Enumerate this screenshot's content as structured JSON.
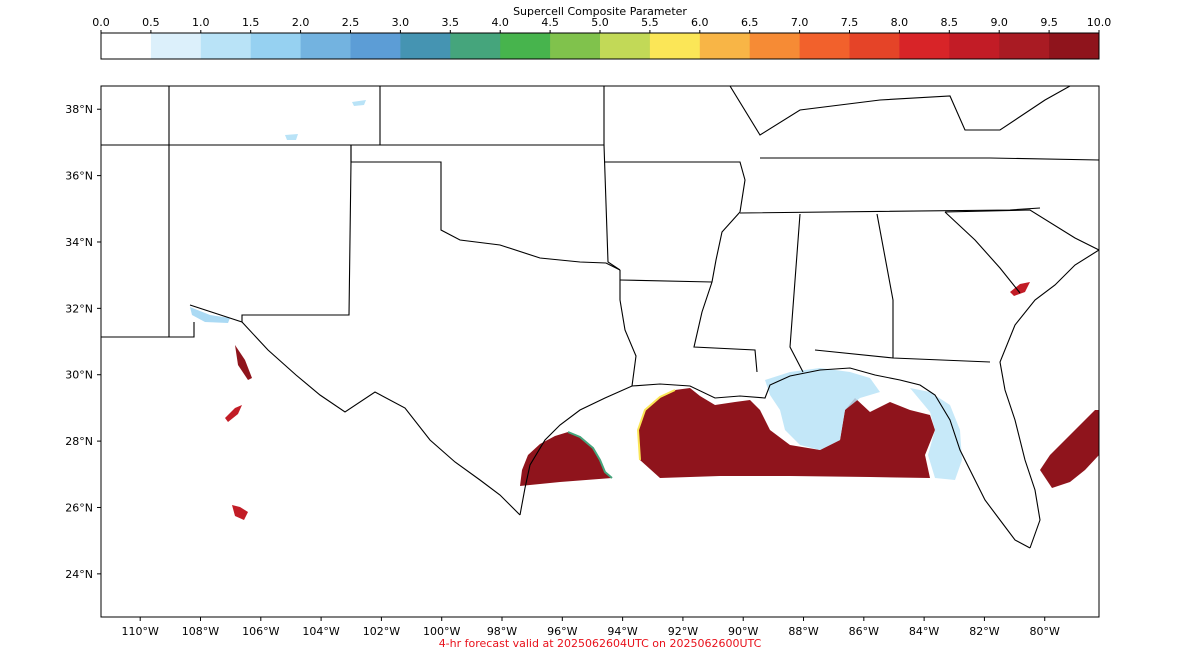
{
  "colorbar": {
    "title": "Supercell Composite Parameter",
    "ticks": [
      "0.0",
      "0.5",
      "1.0",
      "1.5",
      "2.0",
      "2.5",
      "3.0",
      "3.5",
      "4.0",
      "4.5",
      "5.0",
      "5.5",
      "6.0",
      "6.5",
      "7.0",
      "7.5",
      "8.0",
      "8.5",
      "9.0",
      "9.5",
      "10.0"
    ],
    "colors": [
      "#ffffff",
      "#dcf0fb",
      "#b9e3f7",
      "#96d1f1",
      "#73b3e0",
      "#5c9dd6",
      "#4594b2",
      "#45a57c",
      "#47b44d",
      "#80c24c",
      "#c2d957",
      "#fbe657",
      "#f8b546",
      "#f68b35",
      "#f2612c",
      "#e54428",
      "#d82428",
      "#c21c26",
      "#a91b23",
      "#8f141c"
    ]
  },
  "map": {
    "lat_labels": [
      "38°N",
      "36°N",
      "34°N",
      "32°N",
      "30°N",
      "28°N",
      "26°N",
      "24°N"
    ],
    "lon_labels": [
      "110°W",
      "108°W",
      "106°W",
      "104°W",
      "102°W",
      "100°W",
      "98°W",
      "96°W",
      "94°W",
      "92°W",
      "90°W",
      "88°W",
      "86°W",
      "84°W",
      "82°W",
      "80°W"
    ],
    "extent": {
      "lon_min": -111.3,
      "lon_max": -78.2,
      "lat_min": 22.7,
      "lat_max": 38.7
    },
    "field_color_high": "#8f141c",
    "field_color_low": "#b9e3f7"
  },
  "footer": {
    "text": "4-hr forecast valid at 2025062604UTC on 2025062600UTC",
    "color": "#e8111b"
  }
}
